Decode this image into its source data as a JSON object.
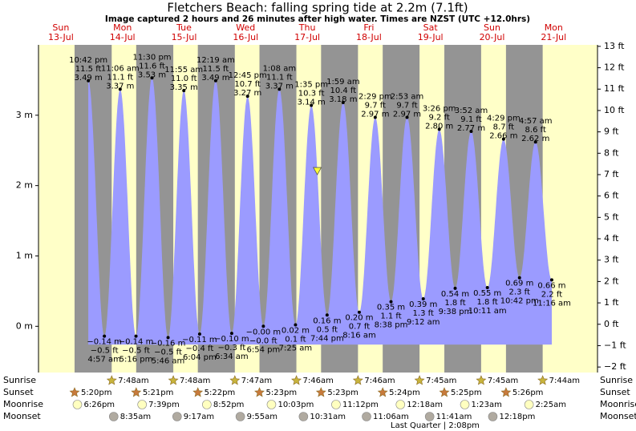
{
  "chart_data": {
    "type": "tide",
    "title": "Fletchers Beach: falling  spring tide at 2.2m (7.1ft)",
    "subtitle": "Image captured 2 hours and 26 minutes after high water. Times are NZST (UTC +12.0hrs)",
    "days": [
      {
        "dow": "Sun",
        "date": "13-Jul"
      },
      {
        "dow": "Mon",
        "date": "14-Jul"
      },
      {
        "dow": "Tue",
        "date": "15-Jul"
      },
      {
        "dow": "Wed",
        "date": "16-Jul"
      },
      {
        "dow": "Thu",
        "date": "17-Jul"
      },
      {
        "dow": "Fri",
        "date": "18-Jul"
      },
      {
        "dow": "Sat",
        "date": "19-Jul"
      },
      {
        "dow": "Sun",
        "date": "20-Jul"
      },
      {
        "dow": "Mon",
        "date": "21-Jul"
      }
    ],
    "tides": [
      {
        "type": "high",
        "time": "10:42 pm",
        "ft": "11.5 ft",
        "m": 3.49,
        "m_label": "3.49 m"
      },
      {
        "type": "low",
        "time": "4:57 am",
        "ft": "−0.5 ft",
        "m": -0.14,
        "m_label": "−0.14 m"
      },
      {
        "type": "high",
        "time": "11:06 am",
        "ft": "11.1 ft",
        "m": 3.37,
        "m_label": "3.37 m"
      },
      {
        "type": "low",
        "time": "5:16 pm",
        "ft": "−0.5 ft",
        "m": -0.14,
        "m_label": "−0.14 m"
      },
      {
        "type": "high",
        "time": "11:30 pm",
        "ft": "11.6 ft",
        "m": 3.53,
        "m_label": "3.53 m"
      },
      {
        "type": "low",
        "time": "5:46 am",
        "ft": "−0.5 ft",
        "m": -0.16,
        "m_label": "−0.16 m"
      },
      {
        "type": "high",
        "time": "11:55 am",
        "ft": "11.0 ft",
        "m": 3.35,
        "m_label": "3.35 m"
      },
      {
        "type": "low",
        "time": "6:04 pm",
        "ft": "−0.4 ft",
        "m": -0.11,
        "m_label": "−0.11 m"
      },
      {
        "type": "high",
        "time": "12:19 am",
        "ft": "11.5 ft",
        "m": 3.49,
        "m_label": "3.49 m"
      },
      {
        "type": "low",
        "time": "6:34 am",
        "ft": "−0.3 ft",
        "m": -0.1,
        "m_label": "−0.10 m"
      },
      {
        "type": "high",
        "time": "12:45 pm",
        "ft": "10.7 ft",
        "m": 3.27,
        "m_label": "3.27 m"
      },
      {
        "type": "low",
        "time": "6:54 pm",
        "ft": "−0.0 ft",
        "m": 0,
        "m_label": "−0.00 m"
      },
      {
        "type": "high",
        "time": "1:08 am",
        "ft": "11.1 ft",
        "m": 3.37,
        "m_label": "3.37 m"
      },
      {
        "type": "low",
        "time": "7:25 am",
        "ft": "0.1 ft",
        "m": 0.02,
        "m_label": "0.02 m"
      },
      {
        "type": "high",
        "time": "1:35 pm",
        "ft": "10.3 ft",
        "m": 3.14,
        "m_label": "3.14 m"
      },
      {
        "type": "low",
        "time": "7:44 pm",
        "ft": "0.5 ft",
        "m": 0.16,
        "m_label": "0.16 m"
      },
      {
        "type": "high",
        "time": "1:59 am",
        "ft": "10.4 ft",
        "m": 3.18,
        "m_label": "3.18 m"
      },
      {
        "type": "low",
        "time": "8:16 am",
        "ft": "0.7 ft",
        "m": 0.2,
        "m_label": "0.20 m"
      },
      {
        "type": "high",
        "time": "2:29 pm",
        "ft": "9.7 ft",
        "m": 2.97,
        "m_label": "2.97 m"
      },
      {
        "type": "low",
        "time": "8:38 pm",
        "ft": "1.1 ft",
        "m": 0.35,
        "m_label": "0.35 m"
      },
      {
        "type": "high",
        "time": "2:53 am",
        "ft": "9.7 ft",
        "m": 2.97,
        "m_label": "2.97 m"
      },
      {
        "type": "low",
        "time": "9:12 am",
        "ft": "1.3 ft",
        "m": 0.39,
        "m_label": "0.39 m"
      },
      {
        "type": "high",
        "time": "3:26 pm",
        "ft": "9.2 ft",
        "m": 2.8,
        "m_label": "2.80 m"
      },
      {
        "type": "low",
        "time": "9:38 pm",
        "ft": "1.8 ft",
        "m": 0.54,
        "m_label": "0.54 m"
      },
      {
        "type": "high",
        "time": "3:52 am",
        "ft": "9.1 ft",
        "m": 2.77,
        "m_label": "2.77 m"
      },
      {
        "type": "low",
        "time": "10:11 am",
        "ft": "1.8 ft",
        "m": 0.55,
        "m_label": "0.55 m"
      },
      {
        "type": "high",
        "time": "4:29 pm",
        "ft": "8.7 ft",
        "m": 2.66,
        "m_label": "2.66 m"
      },
      {
        "type": "low",
        "time": "10:42 pm",
        "ft": "2.3 ft",
        "m": 0.69,
        "m_label": "0.69 m"
      },
      {
        "type": "high",
        "time": "4:57 am",
        "ft": "8.6 ft",
        "m": 2.62,
        "m_label": "2.62 m"
      },
      {
        "type": "low",
        "time": "11:16 am",
        "ft": "2.2 ft",
        "m": 0.66,
        "m_label": "0.66 m"
      }
    ],
    "current_m": 2.2,
    "ylim": [
      -0.6,
      4.0
    ],
    "yticks": [
      {
        "value": 0,
        "label": "0 m"
      },
      {
        "value": 1,
        "label": "1 m"
      },
      {
        "value": 2,
        "label": "2 m"
      },
      {
        "value": 3,
        "label": "3 m"
      }
    ],
    "y2lim": [
      -2.07,
      13.07
    ],
    "y2ticks": [
      {
        "value": -2,
        "label": "−2 ft"
      },
      {
        "value": -1,
        "label": "−1 ft"
      },
      {
        "value": 0,
        "label": "0 ft"
      },
      {
        "value": 1,
        "label": "1 ft"
      },
      {
        "value": 2,
        "label": "2 ft"
      },
      {
        "value": 3,
        "label": "3 ft"
      },
      {
        "value": 4,
        "label": "4 ft"
      },
      {
        "value": 5,
        "label": "5 ft"
      },
      {
        "value": 6,
        "label": "6 ft"
      },
      {
        "value": 7,
        "label": "7 ft"
      },
      {
        "value": 8,
        "label": "8 ft"
      },
      {
        "value": 9,
        "label": "9 ft"
      },
      {
        "value": 10,
        "label": "10 ft"
      },
      {
        "value": 11,
        "label": "11 ft"
      },
      {
        "value": 12,
        "label": "12 ft"
      },
      {
        "value": 13,
        "label": "13 ft"
      }
    ],
    "colors": {
      "day": "#ffffc8",
      "night": "#949494",
      "water": "#9b9bff"
    },
    "rows": {
      "sunrise": "Sunrise",
      "sunset": "Sunset",
      "moonrise": "Moonrise",
      "moonset": "Moonset"
    },
    "sunrise": [
      null,
      "7:48am",
      "7:48am",
      "7:47am",
      "7:46am",
      "7:46am",
      "7:45am",
      "7:45am",
      "7:44am"
    ],
    "sunset": [
      "5:20pm",
      "5:21pm",
      "5:22pm",
      "5:23pm",
      "5:23pm",
      "5:24pm",
      "5:25pm",
      "5:26pm",
      null
    ],
    "moonrise": [
      "6:26pm",
      "7:39pm",
      "8:52pm",
      "10:03pm",
      "11:12pm",
      null,
      "12:18am",
      "1:23am",
      "2:25am"
    ],
    "moonset": [
      null,
      "8:35am",
      "9:17am",
      "9:55am",
      "10:31am",
      "11:06am",
      "11:41am",
      "12:18pm",
      null
    ],
    "moon_phase": "Last Quarter | 2:08pm"
  }
}
